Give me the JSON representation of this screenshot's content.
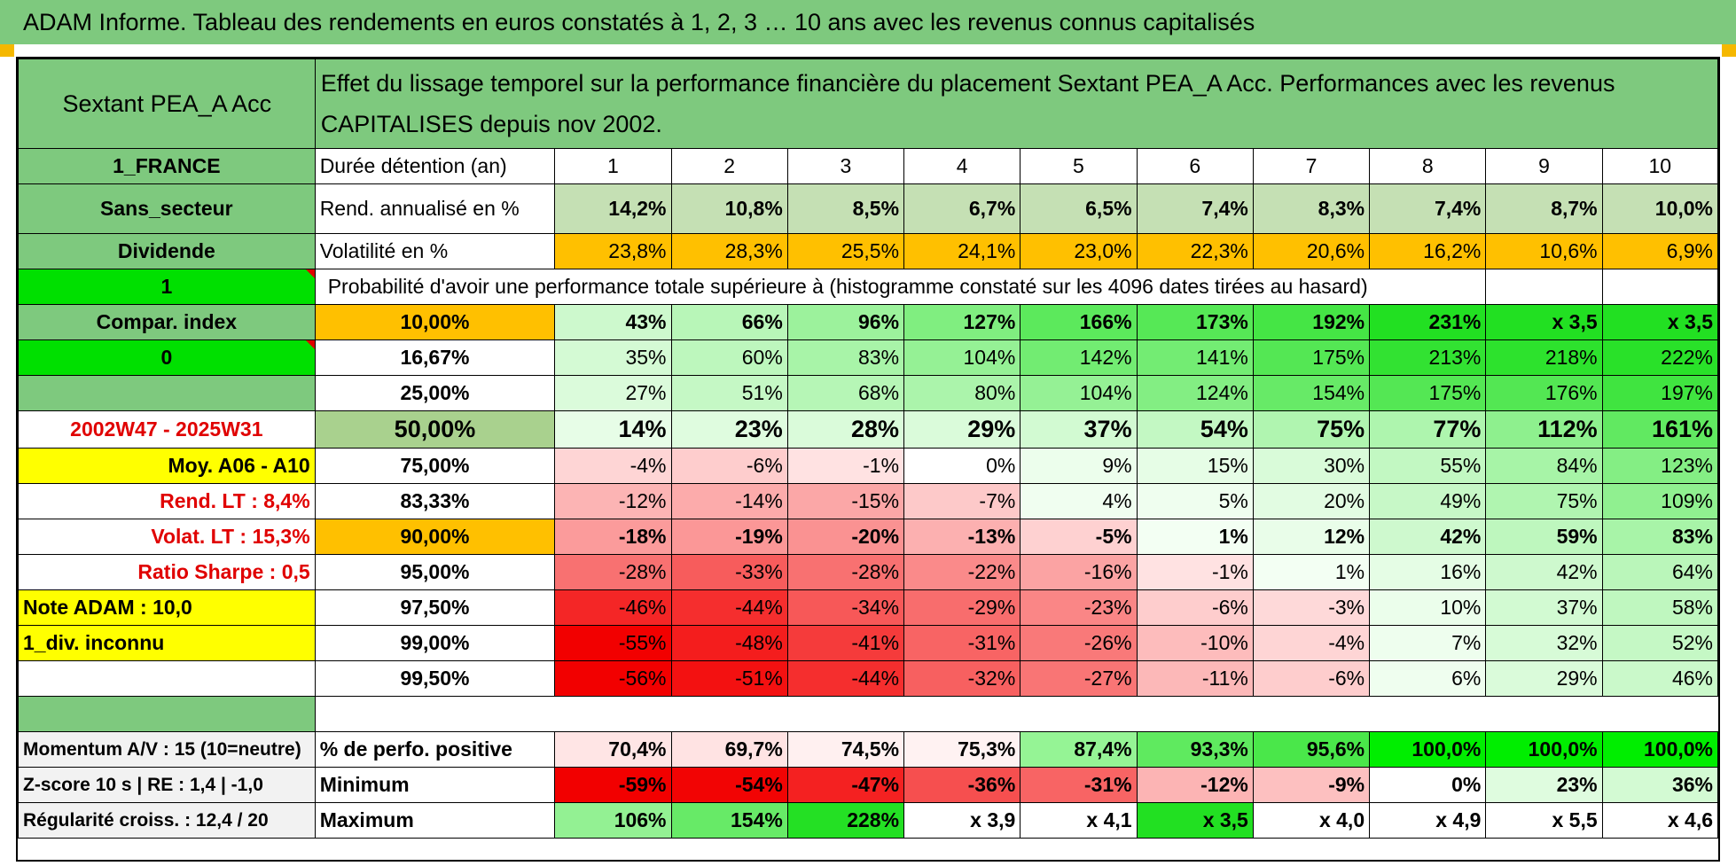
{
  "banner_title": "ADAM Informe. Tableau des rendements en euros constatés à 1, 2, 3 … 10 ans avec les revenus connus capitalisés",
  "fund": {
    "name": "Sextant PEA_A Acc",
    "country": "1_FRANCE",
    "sector": "Sans_secteur",
    "dividend_label": "Dividende",
    "dividend_value": "1",
    "compar_label": "Compar. index",
    "compar_value": "0",
    "period": "2002W47 - 2025W31",
    "moy_label": "Moy. A06 - A10",
    "rend_lt": "Rend. LT :    8,4%",
    "volat_lt": "Volat. LT :    15,3%",
    "sharpe": "Ratio Sharpe :    0,5",
    "note_adam": "Note ADAM : 10,0",
    "div_inconnu": "1_div. inconnu"
  },
  "description": "Effet du lissage temporel sur la performance financière du placement Sextant PEA_A Acc. Performances avec les revenus CAPITALISES depuis nov 2002.",
  "durations": {
    "label": "Durée détention (an)",
    "values": [
      "1",
      "2",
      "3",
      "4",
      "5",
      "6",
      "7",
      "8",
      "9",
      "10"
    ]
  },
  "rend_annualise": {
    "label": "Rend. annualisé en %",
    "values": [
      "14,2%",
      "10,8%",
      "8,5%",
      "6,7%",
      "6,5%",
      "7,4%",
      "8,3%",
      "7,4%",
      "8,7%",
      "10,0%"
    ]
  },
  "volatilite": {
    "label": "Volatilité en %",
    "values": [
      "23,8%",
      "28,3%",
      "25,5%",
      "24,1%",
      "23,0%",
      "22,3%",
      "20,6%",
      "16,2%",
      "10,6%",
      "6,9%"
    ]
  },
  "probability_title": "Probabilité d'avoir une performance totale supérieure à (histogramme constaté sur les 4096 dates tirées au hasard)",
  "prob_rows": [
    {
      "prob": "10,00%",
      "values": [
        "43%",
        "66%",
        "96%",
        "127%",
        "166%",
        "173%",
        "192%",
        "231%",
        "x 3,5",
        "x 3,5"
      ]
    },
    {
      "prob": "16,67%",
      "values": [
        "35%",
        "60%",
        "83%",
        "104%",
        "142%",
        "141%",
        "175%",
        "213%",
        "218%",
        "222%"
      ]
    },
    {
      "prob": "25,00%",
      "values": [
        "27%",
        "51%",
        "68%",
        "80%",
        "104%",
        "124%",
        "154%",
        "175%",
        "176%",
        "197%"
      ]
    },
    {
      "prob": "50,00%",
      "values": [
        "14%",
        "23%",
        "28%",
        "29%",
        "37%",
        "54%",
        "75%",
        "77%",
        "112%",
        "161%"
      ]
    },
    {
      "prob": "75,00%",
      "values": [
        "-4%",
        "-6%",
        "-1%",
        "0%",
        "9%",
        "15%",
        "30%",
        "55%",
        "84%",
        "123%"
      ]
    },
    {
      "prob": "83,33%",
      "values": [
        "-12%",
        "-14%",
        "-15%",
        "-7%",
        "4%",
        "5%",
        "20%",
        "49%",
        "75%",
        "109%"
      ]
    },
    {
      "prob": "90,00%",
      "values": [
        "-18%",
        "-19%",
        "-20%",
        "-13%",
        "-5%",
        "1%",
        "12%",
        "42%",
        "59%",
        "83%"
      ]
    },
    {
      "prob": "95,00%",
      "values": [
        "-28%",
        "-33%",
        "-28%",
        "-22%",
        "-16%",
        "-1%",
        "1%",
        "16%",
        "42%",
        "64%"
      ]
    },
    {
      "prob": "97,50%",
      "values": [
        "-46%",
        "-44%",
        "-34%",
        "-29%",
        "-23%",
        "-6%",
        "-3%",
        "10%",
        "37%",
        "58%"
      ]
    },
    {
      "prob": "99,00%",
      "values": [
        "-55%",
        "-48%",
        "-41%",
        "-31%",
        "-26%",
        "-10%",
        "-4%",
        "7%",
        "32%",
        "52%"
      ]
    },
    {
      "prob": "99,50%",
      "values": [
        "-56%",
        "-51%",
        "-44%",
        "-32%",
        "-27%",
        "-11%",
        "-6%",
        "6%",
        "29%",
        "46%"
      ]
    }
  ],
  "footer": {
    "momentum": "Momentum A/V : 15 (10=neutre)",
    "zscore": "Z-score 10 s | RE : 1,4 | -1,0",
    "regularite": "Régularité croiss. : 12,4 / 20",
    "perfo_positive": {
      "label": "% de perfo. positive",
      "values": [
        "70,4%",
        "69,7%",
        "74,5%",
        "75,3%",
        "87,4%",
        "93,3%",
        "95,6%",
        "100,0%",
        "100,0%",
        "100,0%"
      ]
    },
    "minimum": {
      "label": "Minimum",
      "values": [
        "-59%",
        "-54%",
        "-47%",
        "-36%",
        "-31%",
        "-12%",
        "-9%",
        "0%",
        "23%",
        "36%"
      ]
    },
    "maximum": {
      "label": "Maximum",
      "values": [
        "106%",
        "154%",
        "228%",
        "x 3,9",
        "x 4,1",
        "x 3,5",
        "x 4,0",
        "x 4,9",
        "x 5,5",
        "x 4,6"
      ]
    }
  },
  "colors": {
    "banner": "#7ec97e",
    "header_green": "#7ec97e",
    "light_green": "#c5e0b4",
    "orange": "#ffc000",
    "bright_green": "#00e000",
    "yellow": "#ffff00",
    "red_text": "#e00000",
    "accent_orange_marker": "#f5b800"
  }
}
